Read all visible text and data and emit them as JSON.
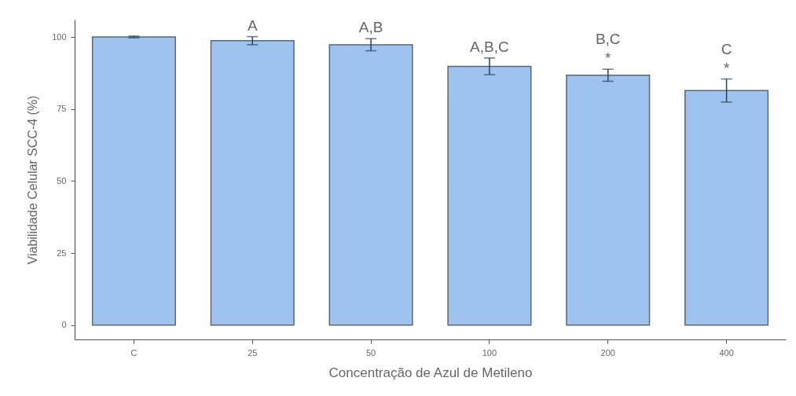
{
  "chart_data": {
    "type": "bar",
    "xlabel": "Concentração de Azul de Metileno",
    "ylabel": "Viabilidade Celular SCC-4 (%)",
    "categories": [
      "C",
      "25",
      "50",
      "100",
      "200",
      "400"
    ],
    "values": [
      100,
      98.7,
      97.3,
      89.8,
      86.7,
      81.4
    ],
    "errors": [
      0.3,
      1.4,
      2.1,
      2.9,
      2.1,
      4
    ],
    "color": "#9dc3ee",
    "ylim": [
      -5,
      106
    ],
    "yticks": [
      0,
      25,
      50,
      75,
      100
    ],
    "grid": false,
    "annotations": [
      {
        "text": "A",
        "x": "25",
        "y": 100.1
      },
      {
        "text": "A,B",
        "x": "50",
        "y": 99.4
      },
      {
        "text": "A,B,C",
        "x": "100",
        "y": 92.7
      },
      {
        "text": "*",
        "x": "200",
        "y": 88.8
      },
      {
        "text": "B,C",
        "x": "200",
        "y": 88.8
      },
      {
        "text": "*",
        "x": "400",
        "y": 85.4
      },
      {
        "text": "C",
        "x": "400",
        "y": 85.4
      }
    ]
  }
}
